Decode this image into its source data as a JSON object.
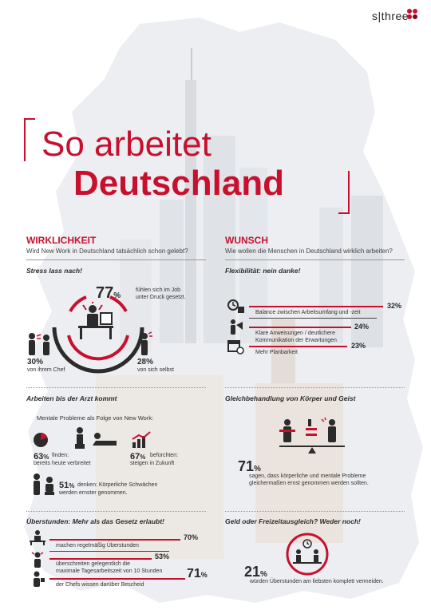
{
  "logo": {
    "text": "s|three"
  },
  "title": {
    "line1": "So arbeitet",
    "line2": "Deutschland"
  },
  "wirklichkeit": {
    "heading": "WIRKLICHKEIT",
    "subheading": "Wird New Work in Deutschland tatsächlich schon gelebt?",
    "stress": {
      "title": "Stress lass nach!",
      "main_pct": "77",
      "main_pct_sign": "%",
      "main_text_1": "fühlen sich im Job",
      "main_text_2": "unter Druck gesetzt.",
      "left_pct": "30%",
      "left_text": "von ihrem Chef",
      "right_pct": "28%",
      "right_text": "von sich selbst"
    },
    "arzt": {
      "title": "Arbeiten bis der Arzt kommt",
      "intro": "Mentale Probleme als Folge von New Work:",
      "a_pct": "63",
      "a_pct_sign": "%",
      "a_text_1": "finden:",
      "a_text_2": "bereits heute verbreitet",
      "b_pct": "67",
      "b_pct_sign": "%",
      "b_text_1": "befürchten:",
      "b_text_2": "steigen in Zukunft",
      "c_pct": "51",
      "c_pct_sign": "%",
      "c_text_1": "denken: Körperliche Schwächen",
      "c_text_2": "werden ernster genommen."
    },
    "ueberstunden": {
      "title": "Überstunden: Mehr als das Gesetz erlaubt!",
      "rows": [
        {
          "pct": "70%",
          "text_1": "machen regelmäßig Überstunden",
          "text_2": ""
        },
        {
          "pct": "53%",
          "text_1": "überschreiten gelegentlich die",
          "text_2": "maximale Tagesarbeitszeit von 10 Stunden"
        },
        {
          "pct": "71",
          "pct_sign": "%",
          "text_1": "der Chefs wissen darüber Bescheid",
          "text_2": ""
        }
      ]
    }
  },
  "wunsch": {
    "heading": "WUNSCH",
    "subheading": "Wie wollen die Menschen in Deutschland wirklich arbeiten?",
    "flex": {
      "title": "Flexibilität: nein danke!",
      "rows": [
        {
          "pct": "32%",
          "text_1": "Balance zwischen Arbeitsumfang und -zeit",
          "text_2": ""
        },
        {
          "pct": "24%",
          "text_1": "Klare Anweisungen / deutlichere",
          "text_2": "Kommunikation der Erwartungen"
        },
        {
          "pct": "23%",
          "text_1": "Mehr Planbarkeit",
          "text_2": ""
        }
      ]
    },
    "gleich": {
      "title": "Gleichbehandlung von Körper und Geist",
      "pct": "71",
      "pct_sign": "%",
      "text_1": "sagen, dass körperliche und mentale Probleme",
      "text_2": "gleichermaßen ernst genommen werden sollten."
    },
    "geld": {
      "title": "Geld oder Freizeitausgleich? Weder noch!",
      "pct": "21",
      "pct_sign": "%",
      "text": "würden Überstunden am liebsten komplett vermeiden."
    }
  },
  "colors": {
    "accent": "#c8102e",
    "text": "#2b2b2b"
  },
  "icons": [
    "person-desk-icon",
    "boss-yelling-icon",
    "self-stress-icon",
    "pie-chart-icon",
    "therapy-icon",
    "rising-chart-icon",
    "nurse-patient-icon",
    "clock-person-icon",
    "megaphone-icon",
    "calendar-icon",
    "balance-scale-icon",
    "stressed-worker-icon",
    "clock-workers-icon"
  ]
}
